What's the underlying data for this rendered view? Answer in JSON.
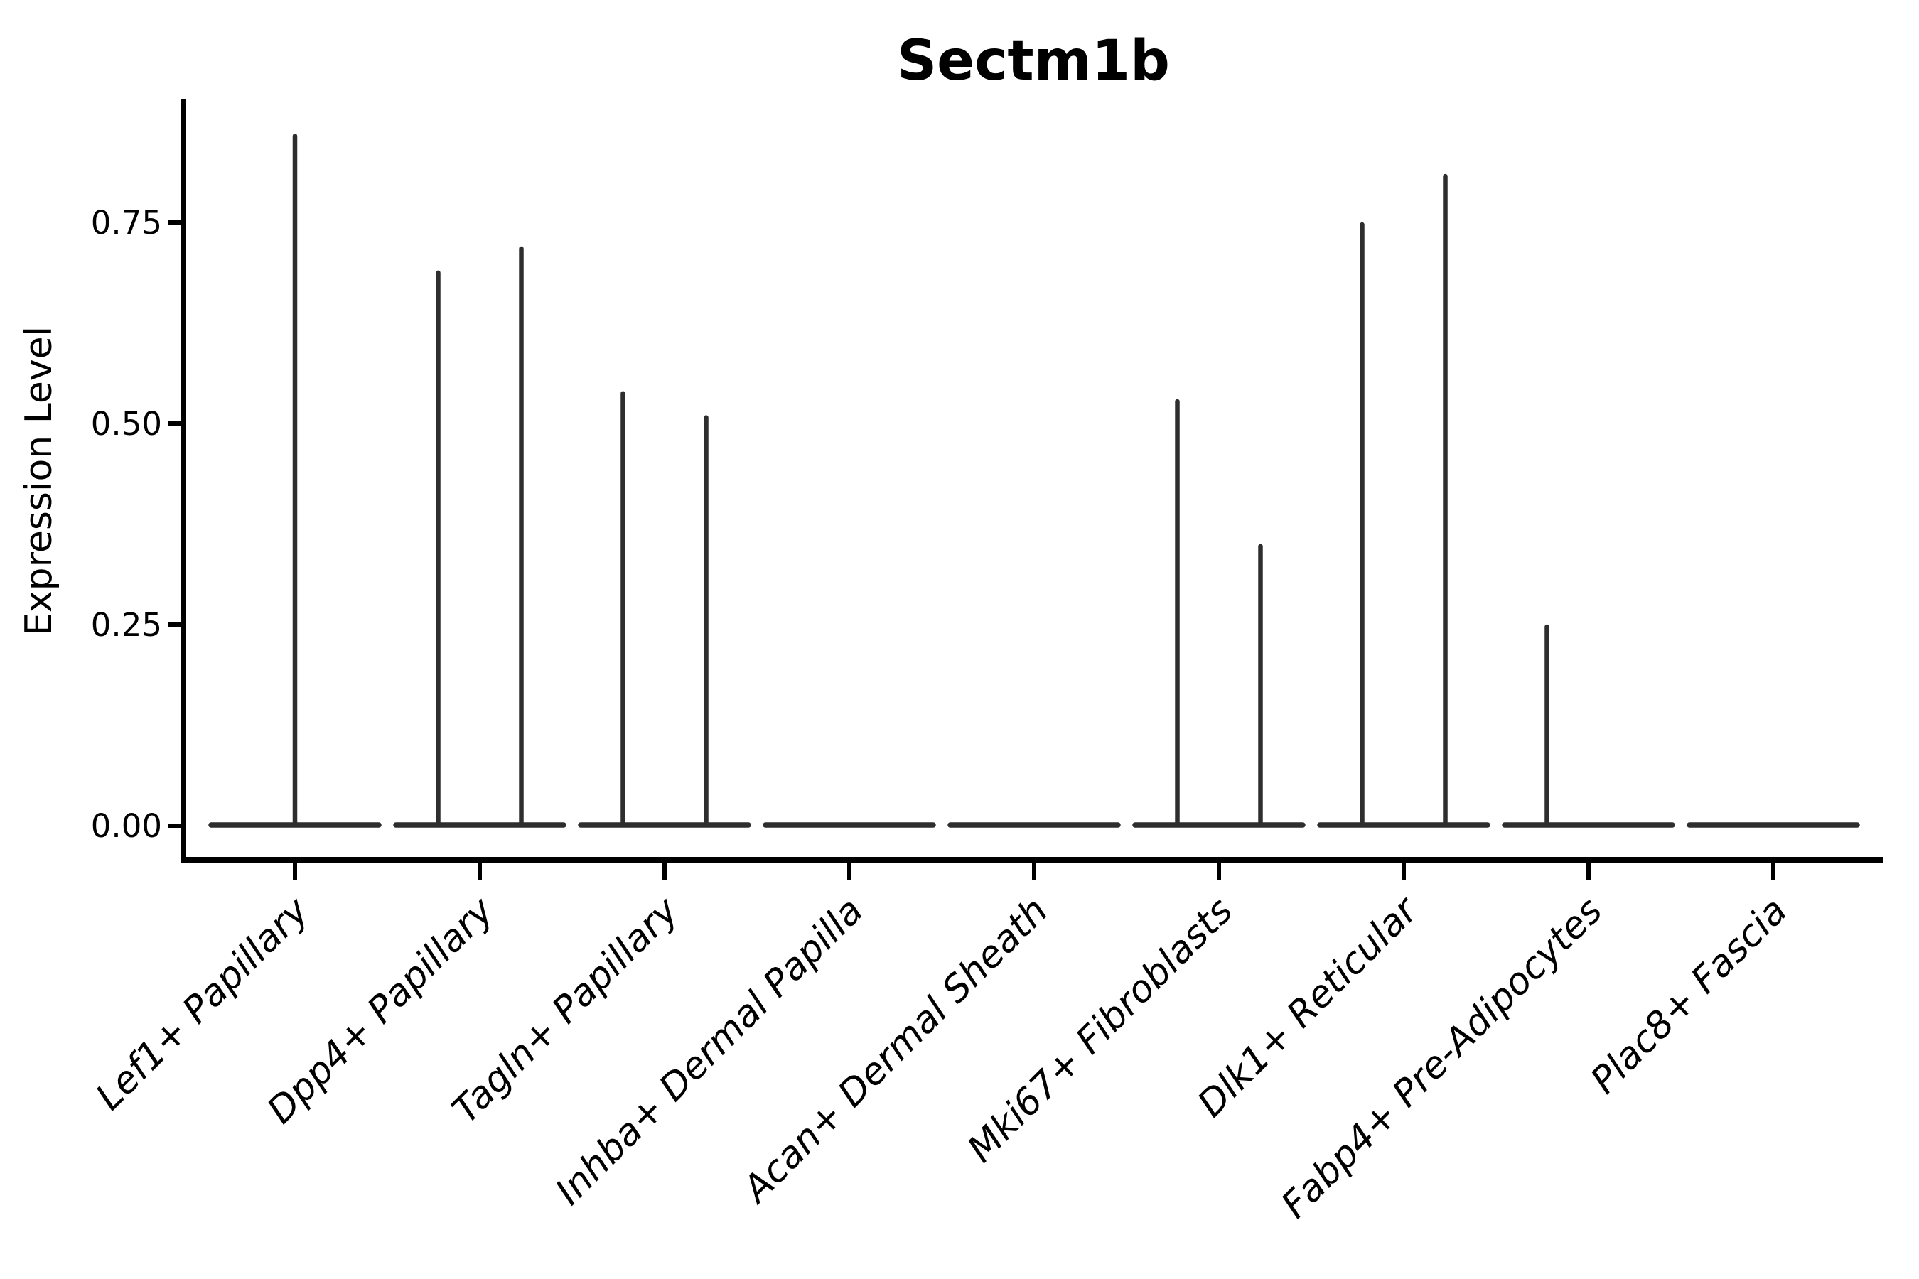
{
  "chart_data": {
    "type": "violin",
    "title": "Sectm1b",
    "ylabel": "Expression Level",
    "xlabel": "",
    "ylim": [
      0,
      0.9
    ],
    "grid": false,
    "legend": null,
    "axis_color": "#000000",
    "violin_color": "#2e2e2e",
    "yticks": [
      {
        "value": 0.0,
        "label": "0.00"
      },
      {
        "value": 0.25,
        "label": "0.25"
      },
      {
        "value": 0.5,
        "label": "0.50"
      },
      {
        "value": 0.75,
        "label": "0.75"
      }
    ],
    "categories": [
      {
        "label": "Lef1+ Papillary",
        "violins": [
          {
            "position": "center",
            "max": 0.86
          }
        ]
      },
      {
        "label": "Dpp4+ Papillary",
        "violins": [
          {
            "position": "left",
            "max": 0.69
          },
          {
            "position": "right",
            "max": 0.72
          }
        ]
      },
      {
        "label": "Tagln+ Papillary",
        "violins": [
          {
            "position": "left",
            "max": 0.54
          },
          {
            "position": "right",
            "max": 0.51
          }
        ]
      },
      {
        "label": "Inhba+ Dermal Papilla",
        "violins": []
      },
      {
        "label": "Acan+ Dermal Sheath",
        "violins": []
      },
      {
        "label": "Mki67+ Fibroblasts",
        "violins": [
          {
            "position": "left",
            "max": 0.53
          },
          {
            "position": "right",
            "max": 0.35
          }
        ]
      },
      {
        "label": "Dlk1+ Reticular",
        "violins": [
          {
            "position": "left",
            "max": 0.75
          },
          {
            "position": "right",
            "max": 0.81
          }
        ]
      },
      {
        "label": "Fabp4+ Pre-Adipocytes",
        "violins": [
          {
            "position": "left",
            "max": 0.25
          }
        ]
      },
      {
        "label": "Plac8+ Fascia",
        "violins": []
      }
    ]
  }
}
